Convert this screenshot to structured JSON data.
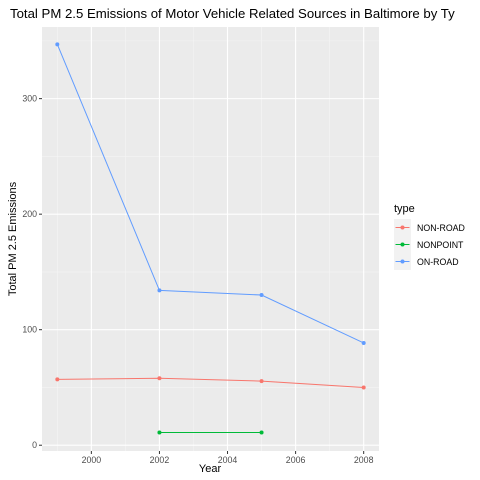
{
  "chart_data": {
    "type": "line",
    "title": "Total PM 2.5 Emissions of Motor Vehicle Related Sources in Baltimore by Ty",
    "xlabel": "Year",
    "ylabel": "Total PM 2.5 Emissions",
    "xlim": [
      1998.55,
      2008.45
    ],
    "ylim": [
      -5,
      362
    ],
    "x_ticks": [
      2000,
      2002,
      2004,
      2006,
      2008
    ],
    "y_ticks": [
      0,
      100,
      200,
      300
    ],
    "grid": true,
    "legend": {
      "title": "type",
      "position": "right"
    },
    "series": [
      {
        "name": "NON-ROAD",
        "color": "#F8766D",
        "x": [
          1999,
          2002,
          2005,
          2008
        ],
        "y": [
          57,
          58,
          55.5,
          50
        ]
      },
      {
        "name": "NONPOINT",
        "color": "#00BA38",
        "x": [
          2002,
          2005
        ],
        "y": [
          11,
          11
        ]
      },
      {
        "name": "ON-ROAD",
        "color": "#619CFF",
        "x": [
          1999,
          2002,
          2005,
          2008
        ],
        "y": [
          347,
          134,
          130,
          88.5
        ]
      }
    ]
  }
}
